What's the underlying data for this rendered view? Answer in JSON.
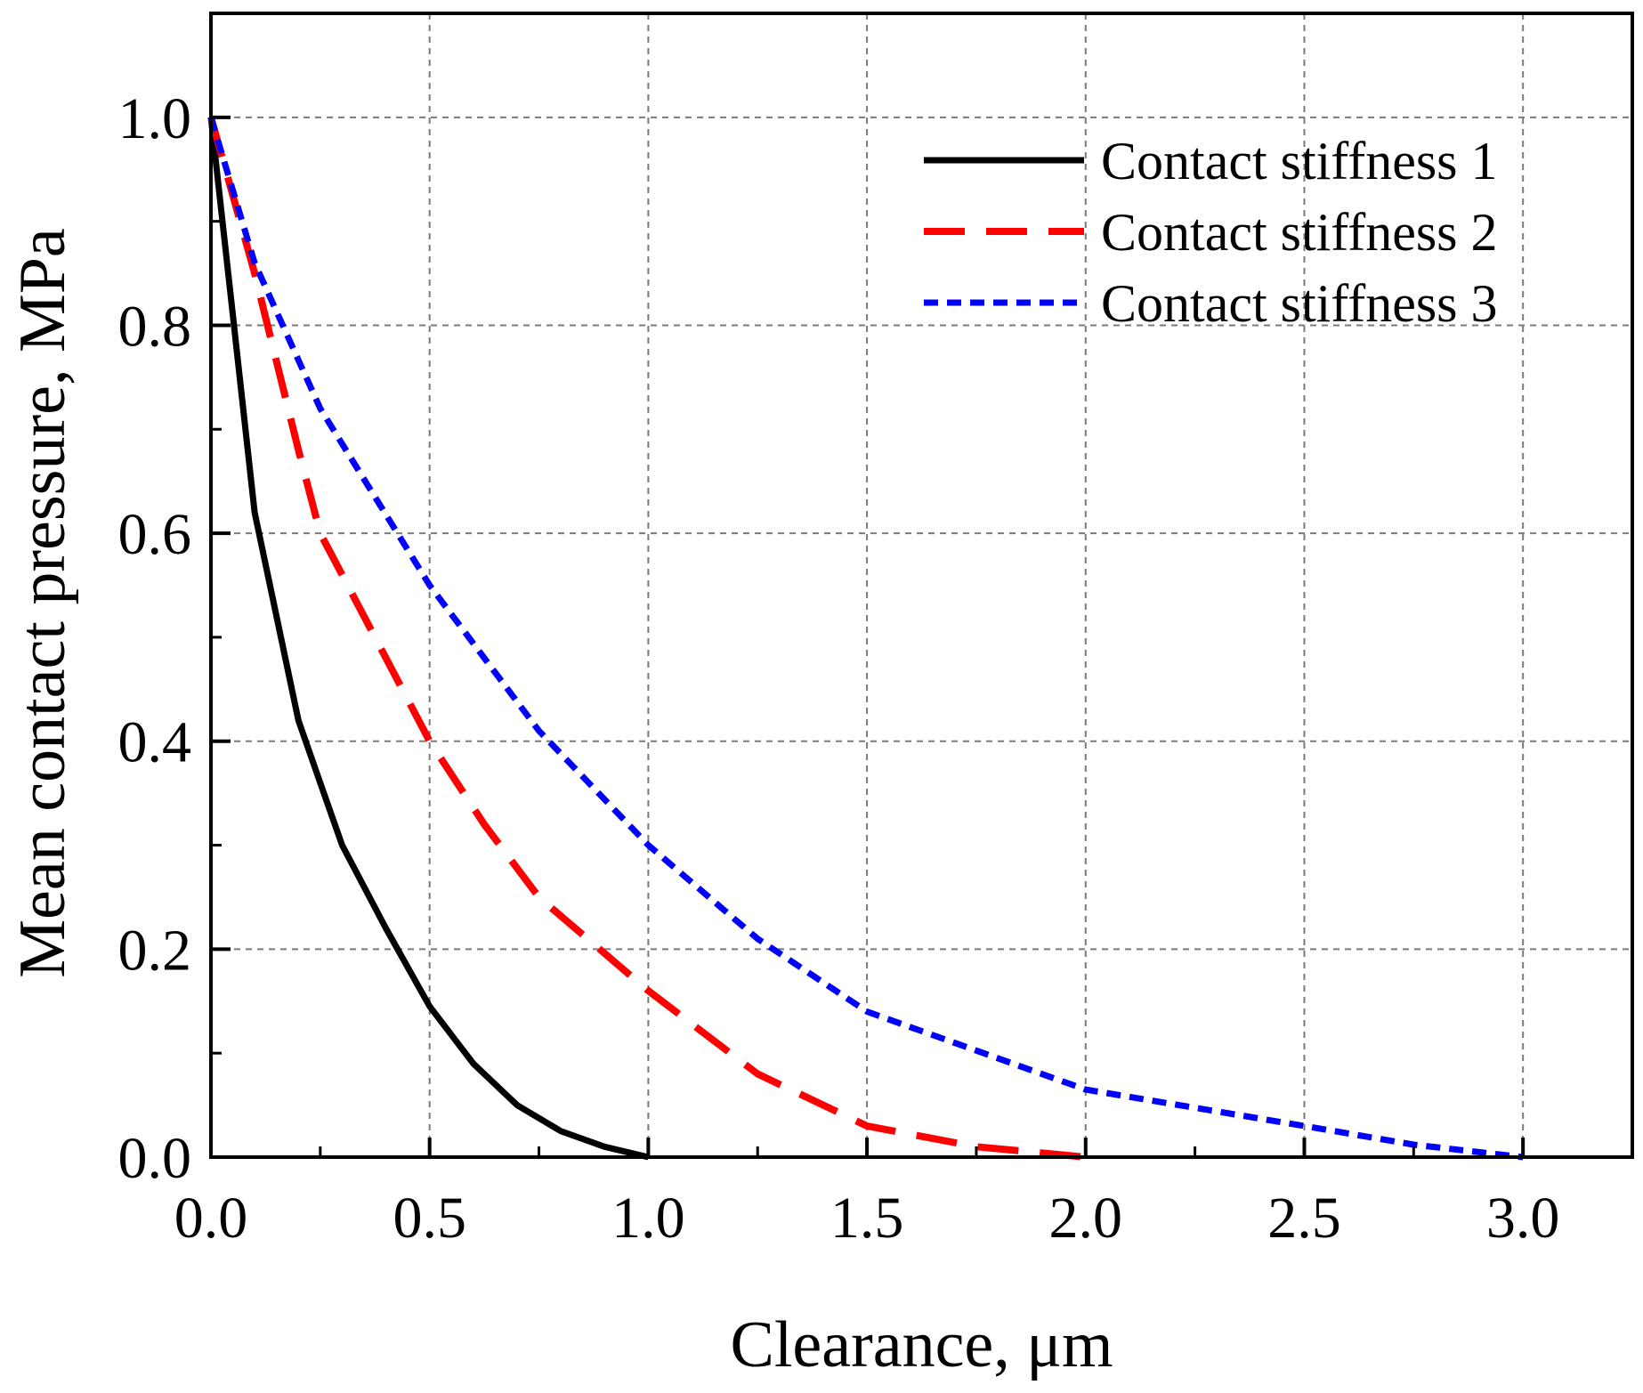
{
  "chart_data": {
    "type": "line",
    "title": "",
    "xlabel": "Clearance, μm",
    "ylabel": "Mean contact pressure, MPa",
    "xlim": [
      0,
      3.25
    ],
    "ylim": [
      0,
      1.1
    ],
    "xticks": [
      "0.0",
      "0.5",
      "1.0",
      "1.5",
      "2.0",
      "2.5",
      "3.0"
    ],
    "yticks": [
      "0.0",
      "0.2",
      "0.4",
      "0.6",
      "0.8",
      "1.0"
    ],
    "grid": true,
    "legend_position": "top-right",
    "series": [
      {
        "name": "Contact stiffness 1",
        "color": "#000000",
        "style": "solid",
        "x": [
          0,
          0.05,
          0.1,
          0.15,
          0.2,
          0.25,
          0.3,
          0.4,
          0.5,
          0.6,
          0.7,
          0.8,
          0.9,
          1.0
        ],
        "y": [
          1.0,
          0.81,
          0.62,
          0.52,
          0.42,
          0.36,
          0.3,
          0.22,
          0.145,
          0.09,
          0.05,
          0.025,
          0.01,
          0.0
        ]
      },
      {
        "name": "Contact stiffness 2",
        "color": "#ff0000",
        "style": "dashed",
        "x": [
          0,
          0.1,
          0.2,
          0.25,
          0.35,
          0.5,
          0.625,
          0.75,
          1.0,
          1.25,
          1.5,
          1.75,
          2.0
        ],
        "y": [
          1.0,
          0.85,
          0.68,
          0.6,
          0.52,
          0.4,
          0.32,
          0.25,
          0.16,
          0.08,
          0.03,
          0.01,
          0.0
        ]
      },
      {
        "name": "Contact stiffness 3",
        "color": "#0000ff",
        "style": "dotted",
        "x": [
          0,
          0.1,
          0.25,
          0.5,
          0.75,
          1.0,
          1.25,
          1.5,
          2.0,
          2.5,
          2.75,
          3.0
        ],
        "y": [
          1.0,
          0.86,
          0.72,
          0.55,
          0.41,
          0.3,
          0.21,
          0.14,
          0.065,
          0.03,
          0.012,
          0.0
        ]
      }
    ]
  }
}
